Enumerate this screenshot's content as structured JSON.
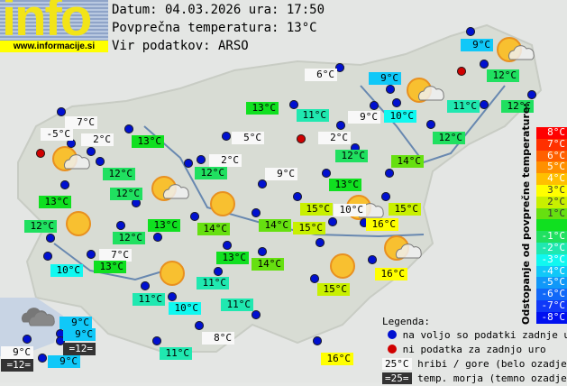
{
  "logo": {
    "word": "info",
    "url": "www.informacije.si"
  },
  "header": {
    "date_line": "Datum: 04.03.2026 ura: 17:50",
    "avg_line": "Povprečna temperatura: 13°C",
    "source_line": "Vir podatkov: ARSO"
  },
  "average_temperature": 13,
  "stations": [
    {
      "temp": "7°C",
      "type": "mountain"
    },
    {
      "temp": "-5°C",
      "type": "mountain"
    },
    {
      "temp": "2°C",
      "type": "mountain"
    },
    {
      "temp": "13°C",
      "type": "valley"
    },
    {
      "temp": "12°C",
      "type": "valley"
    },
    {
      "temp": "13°C",
      "type": "valley"
    },
    {
      "temp": "12°C",
      "type": "valley"
    },
    {
      "temp": "12°C",
      "type": "valley"
    },
    {
      "temp": "12°C",
      "type": "valley"
    },
    {
      "temp": "13°C",
      "type": "valley"
    },
    {
      "temp": "10°C",
      "type": "valley"
    },
    {
      "temp": "7°C",
      "type": "mountain"
    },
    {
      "temp": "13°C",
      "type": "valley"
    },
    {
      "temp": "5°C",
      "type": "mountain"
    },
    {
      "temp": "2°C",
      "type": "mountain"
    },
    {
      "temp": "12°C",
      "type": "valley"
    },
    {
      "temp": "9°C",
      "type": "mountain"
    },
    {
      "temp": "13°C",
      "type": "valley"
    },
    {
      "temp": "14°C",
      "type": "valley"
    },
    {
      "temp": "14°C",
      "type": "valley"
    },
    {
      "temp": "13°C",
      "type": "valley"
    },
    {
      "temp": "14°C",
      "type": "valley"
    },
    {
      "temp": "9°C",
      "type": "valley"
    },
    {
      "temp": "6°C",
      "type": "mountain"
    },
    {
      "temp": "9°C",
      "type": "valley"
    },
    {
      "temp": "12°C",
      "type": "valley"
    },
    {
      "temp": "12°C",
      "type": "valley"
    },
    {
      "temp": "11°C",
      "type": "valley"
    },
    {
      "temp": "11°C",
      "type": "valley"
    },
    {
      "temp": "9°C",
      "type": "mountain"
    },
    {
      "temp": "10°C",
      "type": "valley"
    },
    {
      "temp": "2°C",
      "type": "mountain"
    },
    {
      "temp": "12°C",
      "type": "valley"
    },
    {
      "temp": "12°C",
      "type": "valley"
    },
    {
      "temp": "14°C",
      "type": "valley"
    },
    {
      "temp": "13°C",
      "type": "valley"
    },
    {
      "temp": "15°C",
      "type": "valley"
    },
    {
      "temp": "10°C",
      "type": "mountain"
    },
    {
      "temp": "15°C",
      "type": "valley"
    },
    {
      "temp": "16°C",
      "type": "valley"
    },
    {
      "temp": "15°C",
      "type": "valley"
    },
    {
      "temp": "16°C",
      "type": "valley"
    },
    {
      "temp": "15°C",
      "type": "valley"
    },
    {
      "temp": "11°C",
      "type": "valley"
    },
    {
      "temp": "11°C",
      "type": "valley"
    },
    {
      "temp": "10°C",
      "type": "valley"
    },
    {
      "temp": "11°C",
      "type": "valley"
    },
    {
      "temp": "8°C",
      "type": "mountain"
    },
    {
      "temp": "11°C",
      "type": "valley"
    },
    {
      "temp": "16°C",
      "type": "valley"
    },
    {
      "temp": "9°C",
      "type": "valley"
    },
    {
      "temp": "9°C",
      "type": "valley"
    },
    {
      "temp": "=12=",
      "type": "sea"
    },
    {
      "temp": "9°C",
      "type": "mountain"
    },
    {
      "temp": "=12=",
      "type": "sea"
    },
    {
      "temp": "9°C",
      "type": "valley"
    }
  ],
  "markers_no_data_count": 3,
  "weather_icons": [
    "sun-cloud",
    "sun-cloud",
    "sun",
    "sun",
    "sun",
    "sun-cloud",
    "sun-cloud",
    "sun-cloud",
    "sun",
    "sun-cloud",
    "cloud",
    "sun-cloud"
  ],
  "scale": {
    "title": "Odstopanje od povprečne temperature:",
    "steps": [
      {
        "label": "8°C",
        "color": "#ff0000"
      },
      {
        "label": "7°C",
        "color": "#ff3000"
      },
      {
        "label": "6°C",
        "color": "#ff6000"
      },
      {
        "label": "5°C",
        "color": "#ff9000"
      },
      {
        "label": "4°C",
        "color": "#ffc000"
      },
      {
        "label": "3°C",
        "color": "#ffff00"
      },
      {
        "label": "2°C",
        "color": "#c8f000"
      },
      {
        "label": "1°C",
        "color": "#66e010"
      },
      {
        "label": "",
        "color": "#10e020"
      },
      {
        "label": "-1°C",
        "color": "#20e060"
      },
      {
        "label": "-2°C",
        "color": "#20e8b0"
      },
      {
        "label": "-3°C",
        "color": "#10f8f0"
      },
      {
        "label": "-4°C",
        "color": "#10c8f8"
      },
      {
        "label": "-5°C",
        "color": "#1098f8"
      },
      {
        "label": "-6°C",
        "color": "#1068f8"
      },
      {
        "label": "-7°C",
        "color": "#1038f8"
      },
      {
        "label": "-8°C",
        "color": "#0010f0"
      }
    ]
  },
  "legend": {
    "title": "Legenda:",
    "available": "na voljo so podatki zadnje ure",
    "no_data": "ni podatka za zadnjo uro",
    "mountain_sample": "25°C",
    "mountain_text": "hribi / gore (belo ozadje)",
    "sea_sample": "=25=",
    "sea_text": "temp. morja (temno ozadje)",
    "available_color": "#0010d0",
    "no_data_color": "#d00000"
  }
}
